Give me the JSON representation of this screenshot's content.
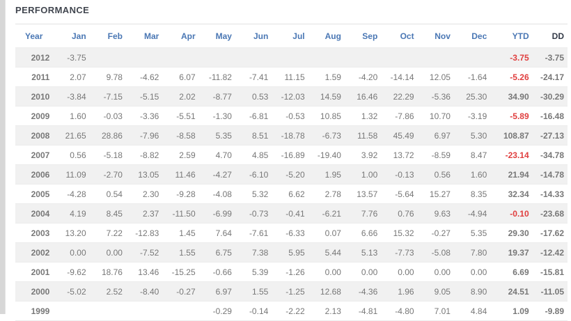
{
  "title": "PERFORMANCE",
  "colors": {
    "negative_value": "#e03e3e",
    "positive_value": "#777777",
    "header_blue": "#4a77b4",
    "dd_header": "#333a47",
    "stripe_background": "#f1f1f1",
    "title_text": "#41464f"
  },
  "table": {
    "columns": [
      "Year",
      "Jan",
      "Feb",
      "Mar",
      "Apr",
      "May",
      "Jun",
      "Jul",
      "Aug",
      "Sep",
      "Oct",
      "Nov",
      "Dec",
      "YTD",
      "DD"
    ],
    "rows": [
      {
        "year": "2012",
        "months": [
          "-3.75",
          "",
          "",
          "",
          "",
          "",
          "",
          "",
          "",
          "",
          "",
          ""
        ],
        "ytd": "-3.75",
        "dd": "-3.75"
      },
      {
        "year": "2011",
        "months": [
          "2.07",
          "9.78",
          "-4.62",
          "6.07",
          "-11.82",
          "-7.41",
          "11.15",
          "1.59",
          "-4.20",
          "-14.14",
          "12.05",
          "-1.64"
        ],
        "ytd": "-5.26",
        "dd": "-24.17"
      },
      {
        "year": "2010",
        "months": [
          "-3.84",
          "-7.15",
          "-5.15",
          "2.02",
          "-8.77",
          "0.53",
          "-12.03",
          "14.59",
          "16.46",
          "22.29",
          "-5.36",
          "25.30"
        ],
        "ytd": "34.90",
        "dd": "-30.29"
      },
      {
        "year": "2009",
        "months": [
          "1.60",
          "-0.03",
          "-3.36",
          "-5.51",
          "-1.30",
          "-6.81",
          "-0.53",
          "10.85",
          "1.32",
          "-7.86",
          "10.70",
          "-3.19"
        ],
        "ytd": "-5.89",
        "dd": "-16.48"
      },
      {
        "year": "2008",
        "months": [
          "21.65",
          "28.86",
          "-7.96",
          "-8.58",
          "5.35",
          "8.51",
          "-18.78",
          "-6.73",
          "11.58",
          "45.49",
          "6.97",
          "5.30"
        ],
        "ytd": "108.87",
        "dd": "-27.13"
      },
      {
        "year": "2007",
        "months": [
          "0.56",
          "-5.18",
          "-8.82",
          "2.59",
          "4.70",
          "4.85",
          "-16.89",
          "-19.40",
          "3.92",
          "13.72",
          "-8.59",
          "8.47"
        ],
        "ytd": "-23.14",
        "dd": "-34.78"
      },
      {
        "year": "2006",
        "months": [
          "11.09",
          "-2.70",
          "13.05",
          "11.46",
          "-4.27",
          "-6.10",
          "-5.20",
          "1.95",
          "1.00",
          "-0.13",
          "0.56",
          "1.60"
        ],
        "ytd": "21.94",
        "dd": "-14.78"
      },
      {
        "year": "2005",
        "months": [
          "-4.28",
          "0.54",
          "2.30",
          "-9.28",
          "-4.08",
          "5.32",
          "6.62",
          "2.78",
          "13.57",
          "-5.64",
          "15.27",
          "8.35"
        ],
        "ytd": "32.34",
        "dd": "-14.33"
      },
      {
        "year": "2004",
        "months": [
          "4.19",
          "8.45",
          "2.37",
          "-11.50",
          "-6.99",
          "-0.73",
          "-0.41",
          "-6.21",
          "7.76",
          "0.76",
          "9.63",
          "-4.94"
        ],
        "ytd": "-0.10",
        "dd": "-23.68"
      },
      {
        "year": "2003",
        "months": [
          "13.20",
          "7.22",
          "-12.83",
          "1.45",
          "7.64",
          "-7.61",
          "-6.33",
          "0.07",
          "6.66",
          "15.32",
          "-0.27",
          "5.35"
        ],
        "ytd": "29.30",
        "dd": "-17.62"
      },
      {
        "year": "2002",
        "months": [
          "0.00",
          "0.00",
          "-7.52",
          "1.55",
          "6.75",
          "7.38",
          "5.95",
          "5.44",
          "5.13",
          "-7.73",
          "-5.08",
          "7.80"
        ],
        "ytd": "19.37",
        "dd": "-12.42"
      },
      {
        "year": "2001",
        "months": [
          "-9.62",
          "18.76",
          "13.46",
          "-15.25",
          "-0.66",
          "5.39",
          "-1.26",
          "0.00",
          "0.00",
          "0.00",
          "0.00",
          "0.00"
        ],
        "ytd": "6.69",
        "dd": "-15.81"
      },
      {
        "year": "2000",
        "months": [
          "-5.02",
          "2.52",
          "-8.40",
          "-0.27",
          "6.97",
          "1.55",
          "-1.25",
          "12.68",
          "-4.36",
          "1.96",
          "9.05",
          "8.90"
        ],
        "ytd": "24.51",
        "dd": "-11.05"
      },
      {
        "year": "1999",
        "months": [
          "",
          "",
          "",
          "",
          "-0.29",
          "-0.14",
          "-2.22",
          "2.13",
          "-4.81",
          "-4.80",
          "7.01",
          "4.84"
        ],
        "ytd": "1.09",
        "dd": "-9.89"
      }
    ]
  }
}
